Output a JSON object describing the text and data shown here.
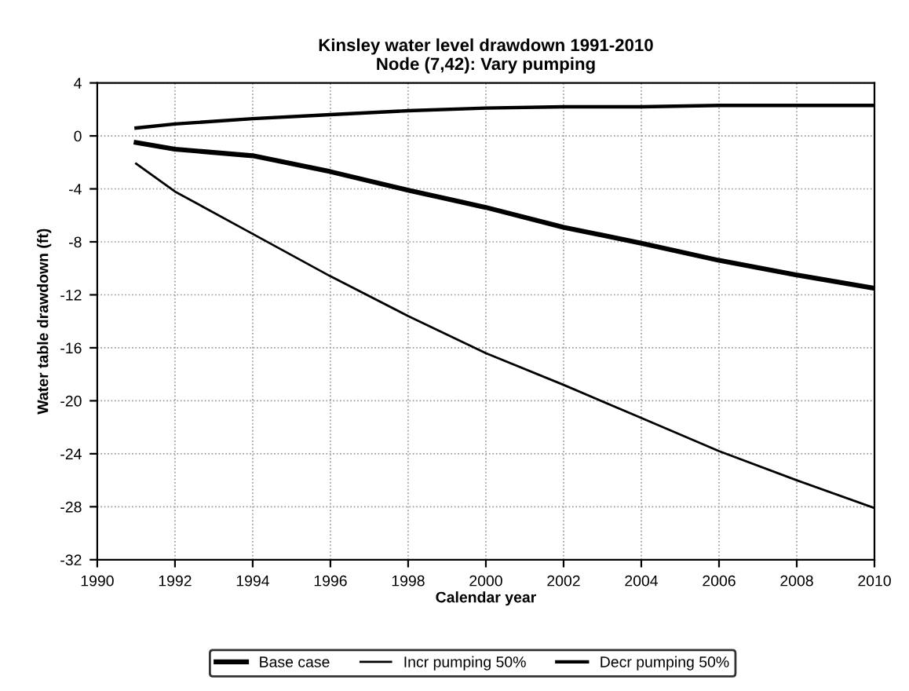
{
  "chart_data": {
    "type": "line",
    "title": "Kinsley water level drawdown 1991-2010\nNode (7,42): Vary pumping",
    "xlabel": "Calendar year",
    "ylabel": "Water table drawdown (ft)",
    "series": [
      {
        "name": "Base case",
        "color": "#000000",
        "x": [
          1991,
          1992,
          1994,
          1996,
          1998,
          2000,
          2002,
          2004,
          2006,
          2008,
          2010
        ],
        "values": [
          -0.5,
          -1.0,
          -1.5,
          -2.7,
          -4.1,
          -5.4,
          -6.9,
          -8.1,
          -9.4,
          -10.5,
          -11.5
        ]
      },
      {
        "name": "Incr pumping 50%",
        "color": "#000000",
        "x": [
          1991,
          1992,
          1994,
          1996,
          1998,
          2000,
          2002,
          2004,
          2006,
          2008,
          2010
        ],
        "values": [
          -2.1,
          -4.2,
          -7.4,
          -10.6,
          -13.6,
          -16.4,
          -18.8,
          -21.3,
          -23.8,
          -26.0,
          -28.1
        ]
      },
      {
        "name": "Decr pumping 50%",
        "color": "#000000",
        "x": [
          1991,
          1992,
          1994,
          1996,
          1998,
          2000,
          2002,
          2004,
          2006,
          2008,
          2010
        ],
        "values": [
          0.6,
          0.9,
          1.3,
          1.6,
          1.9,
          2.1,
          2.2,
          2.2,
          2.3,
          2.3,
          2.3
        ]
      }
    ],
    "xlim": [
      1990,
      2010
    ],
    "xticks": [
      1990,
      1992,
      1994,
      1996,
      1998,
      2000,
      2002,
      2004,
      2006,
      2008,
      2010
    ],
    "ylim": [
      -32,
      4
    ],
    "yticks": [
      4,
      0,
      -4,
      -8,
      -12,
      -16,
      -20,
      -24,
      -28,
      -32
    ],
    "grid": true,
    "legend": "bottom",
    "line_style": "solid"
  }
}
